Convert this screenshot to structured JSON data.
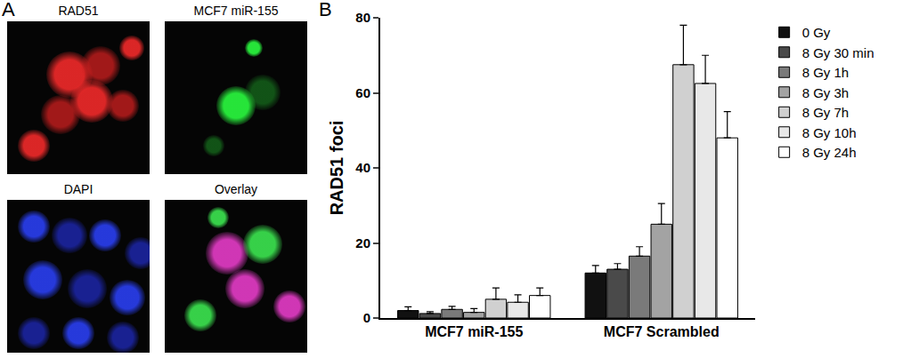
{
  "panel_labels": [
    "A",
    "B"
  ],
  "images": {
    "tiles": [
      {
        "label": "RAD51"
      },
      {
        "label": "MCF7 miR-155"
      },
      {
        "label": "DAPI"
      },
      {
        "label": "Overlay"
      }
    ]
  },
  "chart_data": {
    "type": "bar",
    "categories": [
      "MCF7 miR-155",
      "MCF7 Scrambled"
    ],
    "y_label": "RAD51 foci",
    "ylim": [
      0,
      80
    ],
    "yticks": [
      0,
      20,
      40,
      60,
      80
    ],
    "grid": false,
    "legend": "top-right",
    "series": [
      {
        "name": "0 Gy",
        "color": "#111111",
        "values": [
          2.0,
          12.0
        ],
        "errors": [
          1.0,
          2.0
        ]
      },
      {
        "name": "8 Gy 30 min",
        "color": "#4a4a4a",
        "values": [
          1.2,
          13.0
        ],
        "errors": [
          0.5,
          1.5
        ]
      },
      {
        "name": "8 Gy 1h",
        "color": "#7a7a7a",
        "values": [
          2.3,
          16.5
        ],
        "errors": [
          0.8,
          2.5
        ]
      },
      {
        "name": "8 Gy 3h",
        "color": "#a3a3a3",
        "values": [
          1.5,
          25.0
        ],
        "errors": [
          1.0,
          5.5
        ]
      },
      {
        "name": "8 Gy 7h",
        "color": "#d0d0d0",
        "values": [
          5.0,
          67.5
        ],
        "errors": [
          3.0,
          10.5
        ]
      },
      {
        "name": "8 Gy 10h",
        "color": "#e8e8e8",
        "values": [
          4.2,
          62.5
        ],
        "errors": [
          2.0,
          7.5
        ]
      },
      {
        "name": "8 Gy 24h",
        "color": "#ffffff",
        "values": [
          6.0,
          48.0
        ],
        "errors": [
          2.0,
          7.0
        ]
      }
    ]
  }
}
